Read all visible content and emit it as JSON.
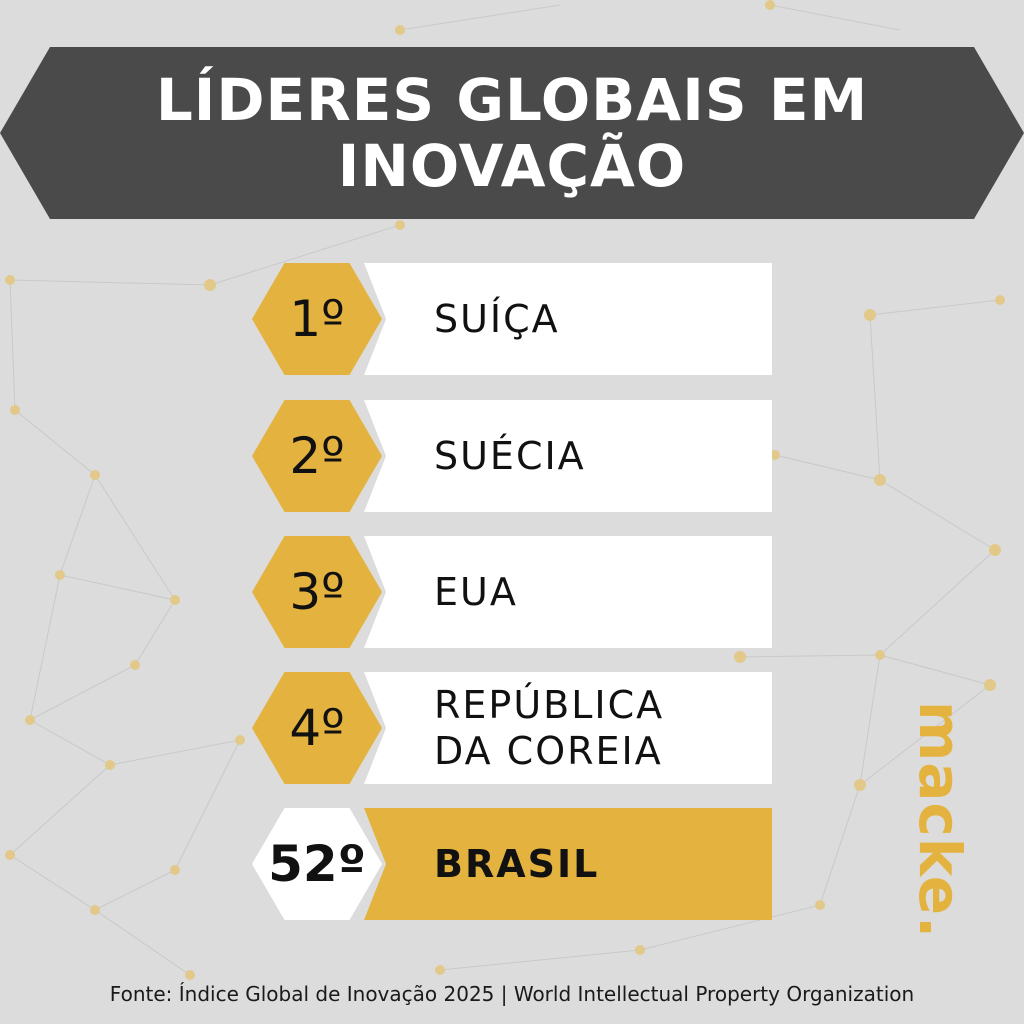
{
  "title": "LÍDERES GLOBAIS EM INOVAÇÃO",
  "rankings": [
    {
      "rank": "1º",
      "country": "SUÍÇA"
    },
    {
      "rank": "2º",
      "country": "SUÉCIA"
    },
    {
      "rank": "3º",
      "country": "EUA"
    },
    {
      "rank": "4º",
      "country": "REPÚBLICA DA COREIA"
    },
    {
      "rank": "52º",
      "country": "BRASIL",
      "highlight": true
    }
  ],
  "brand": "macke.",
  "source": "Fonte: Índice Global de Inovação 2025 | World Intellectual Property Organization",
  "colors": {
    "background": "#dcdcdc",
    "banner": "#4a4a4a",
    "accent": "#e4b33f",
    "text": "#111111"
  }
}
